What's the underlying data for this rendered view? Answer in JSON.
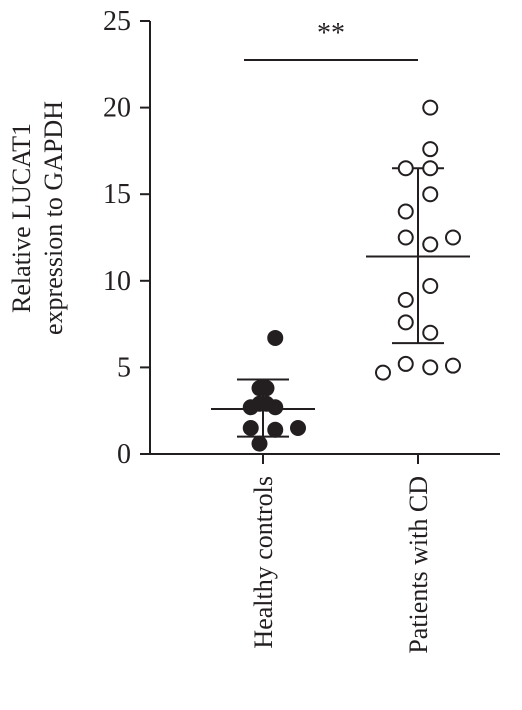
{
  "chart_data": {
    "type": "scatter",
    "ylabel_line1": "Relative LUCAT1",
    "ylabel_line2": "expression to GAPDH",
    "ylim": [
      0,
      25
    ],
    "yticks": [
      0,
      5,
      10,
      15,
      20,
      25
    ],
    "categories": [
      "Healthy controls",
      "Patients with CD"
    ],
    "significance": "**",
    "groups": [
      {
        "name": "Healthy controls",
        "marker": "filled-circle",
        "points": [
          {
            "offset": 0.35,
            "y": 6.7
          },
          {
            "offset": -0.35,
            "y": 2.7
          },
          {
            "offset": 0.35,
            "y": 2.7
          },
          {
            "offset": -0.35,
            "y": 1.5
          },
          {
            "offset": 1.0,
            "y": 1.5
          },
          {
            "offset": -0.1,
            "y": 3.8
          },
          {
            "offset": 0.1,
            "y": 3.8
          },
          {
            "offset": -0.1,
            "y": 2.9
          },
          {
            "offset": 0.1,
            "y": 2.9
          },
          {
            "offset": 0.35,
            "y": 1.4
          },
          {
            "offset": -0.1,
            "y": 0.6
          }
        ],
        "mean": 2.6,
        "sd_low": 1.0,
        "sd_high": 4.3
      },
      {
        "name": "Patients with CD",
        "marker": "open-circle",
        "points": [
          {
            "offset": 0.35,
            "y": 20.0
          },
          {
            "offset": 0.35,
            "y": 17.6
          },
          {
            "offset": -0.35,
            "y": 16.5
          },
          {
            "offset": 0.35,
            "y": 16.5
          },
          {
            "offset": 0.35,
            "y": 15.0
          },
          {
            "offset": -0.35,
            "y": 14.0
          },
          {
            "offset": -0.35,
            "y": 12.5
          },
          {
            "offset": 0.35,
            "y": 12.1
          },
          {
            "offset": 1.0,
            "y": 12.5
          },
          {
            "offset": 0.35,
            "y": 9.7
          },
          {
            "offset": -0.35,
            "y": 8.9
          },
          {
            "offset": -0.35,
            "y": 7.6
          },
          {
            "offset": 0.35,
            "y": 7.0
          },
          {
            "offset": -1.0,
            "y": 4.7
          },
          {
            "offset": -0.35,
            "y": 5.2
          },
          {
            "offset": 0.35,
            "y": 5.0
          },
          {
            "offset": 1.0,
            "y": 5.1
          }
        ],
        "mean": 11.4,
        "sd_low": 6.4,
        "sd_high": 16.5
      }
    ],
    "grid": false,
    "legend": "none"
  }
}
